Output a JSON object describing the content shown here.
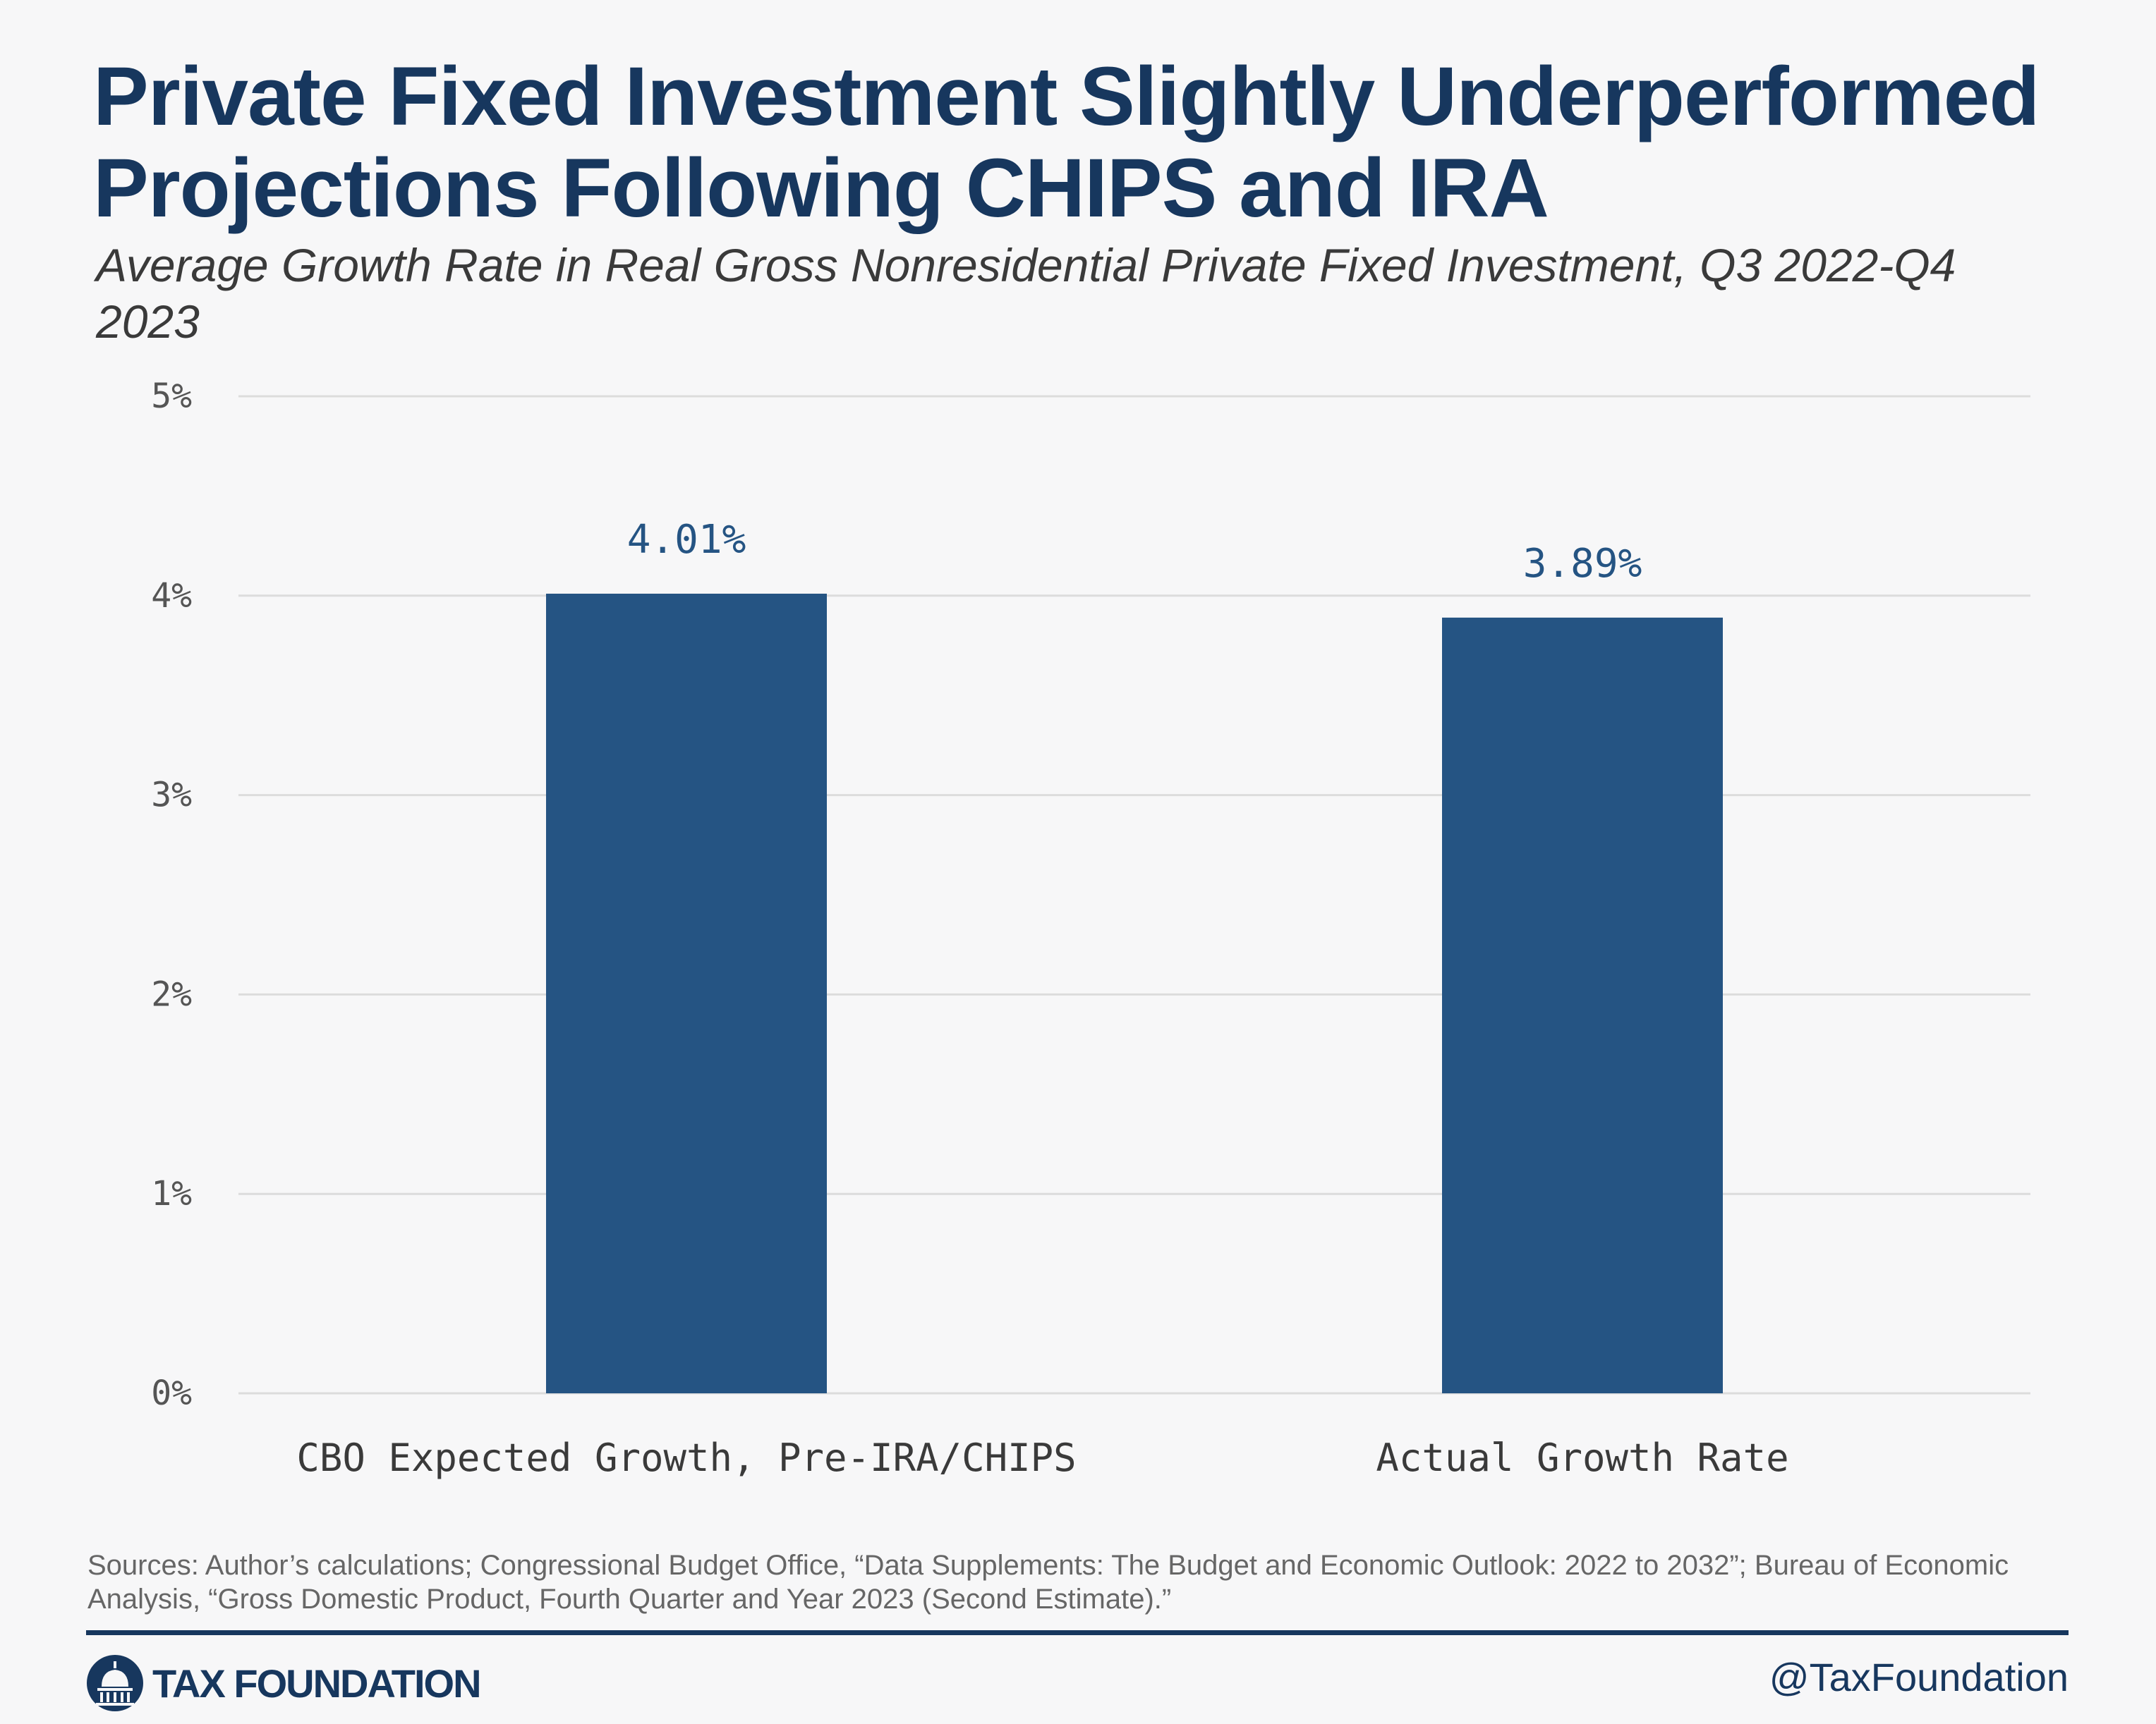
{
  "title": "Private Fixed Investment Slightly Underperformed Projections Following CHIPS and IRA",
  "subtitle": "Average Growth Rate in Real Gross Nonresidential Private Fixed Investment, Q3 2022-Q4 2023",
  "chart_data": {
    "type": "bar",
    "categories": [
      "CBO Expected Growth, Pre-IRA/CHIPS",
      "Actual Growth Rate"
    ],
    "values": [
      4.01,
      3.89
    ],
    "data_labels": [
      "4.01%",
      "3.89%"
    ],
    "ylim": [
      0,
      5
    ],
    "yticks": [
      0,
      1,
      2,
      3,
      4,
      5
    ],
    "ytick_labels": [
      "0%",
      "1%",
      "2%",
      "3%",
      "4%",
      "5%"
    ],
    "grid": true,
    "legend": "none",
    "colors": {
      "bar": "#255483",
      "label": "#255483",
      "grid": "#dcdcdc",
      "tick": "#555555"
    }
  },
  "footer": {
    "sources": "Sources: Author’s calculations; Congressional Budget Office, “Data Supplements: The Budget and Economic Outlook: 2022 to 2032”; Bureau of Economic Analysis, “Gross Domestic Product, Fourth Quarter and Year 2023 (Second Estimate).”",
    "brand": "TAX FOUNDATION",
    "handle": "@TaxFoundation",
    "brand_color": "#17375e",
    "logo_icon": "capitol-dome-icon"
  }
}
